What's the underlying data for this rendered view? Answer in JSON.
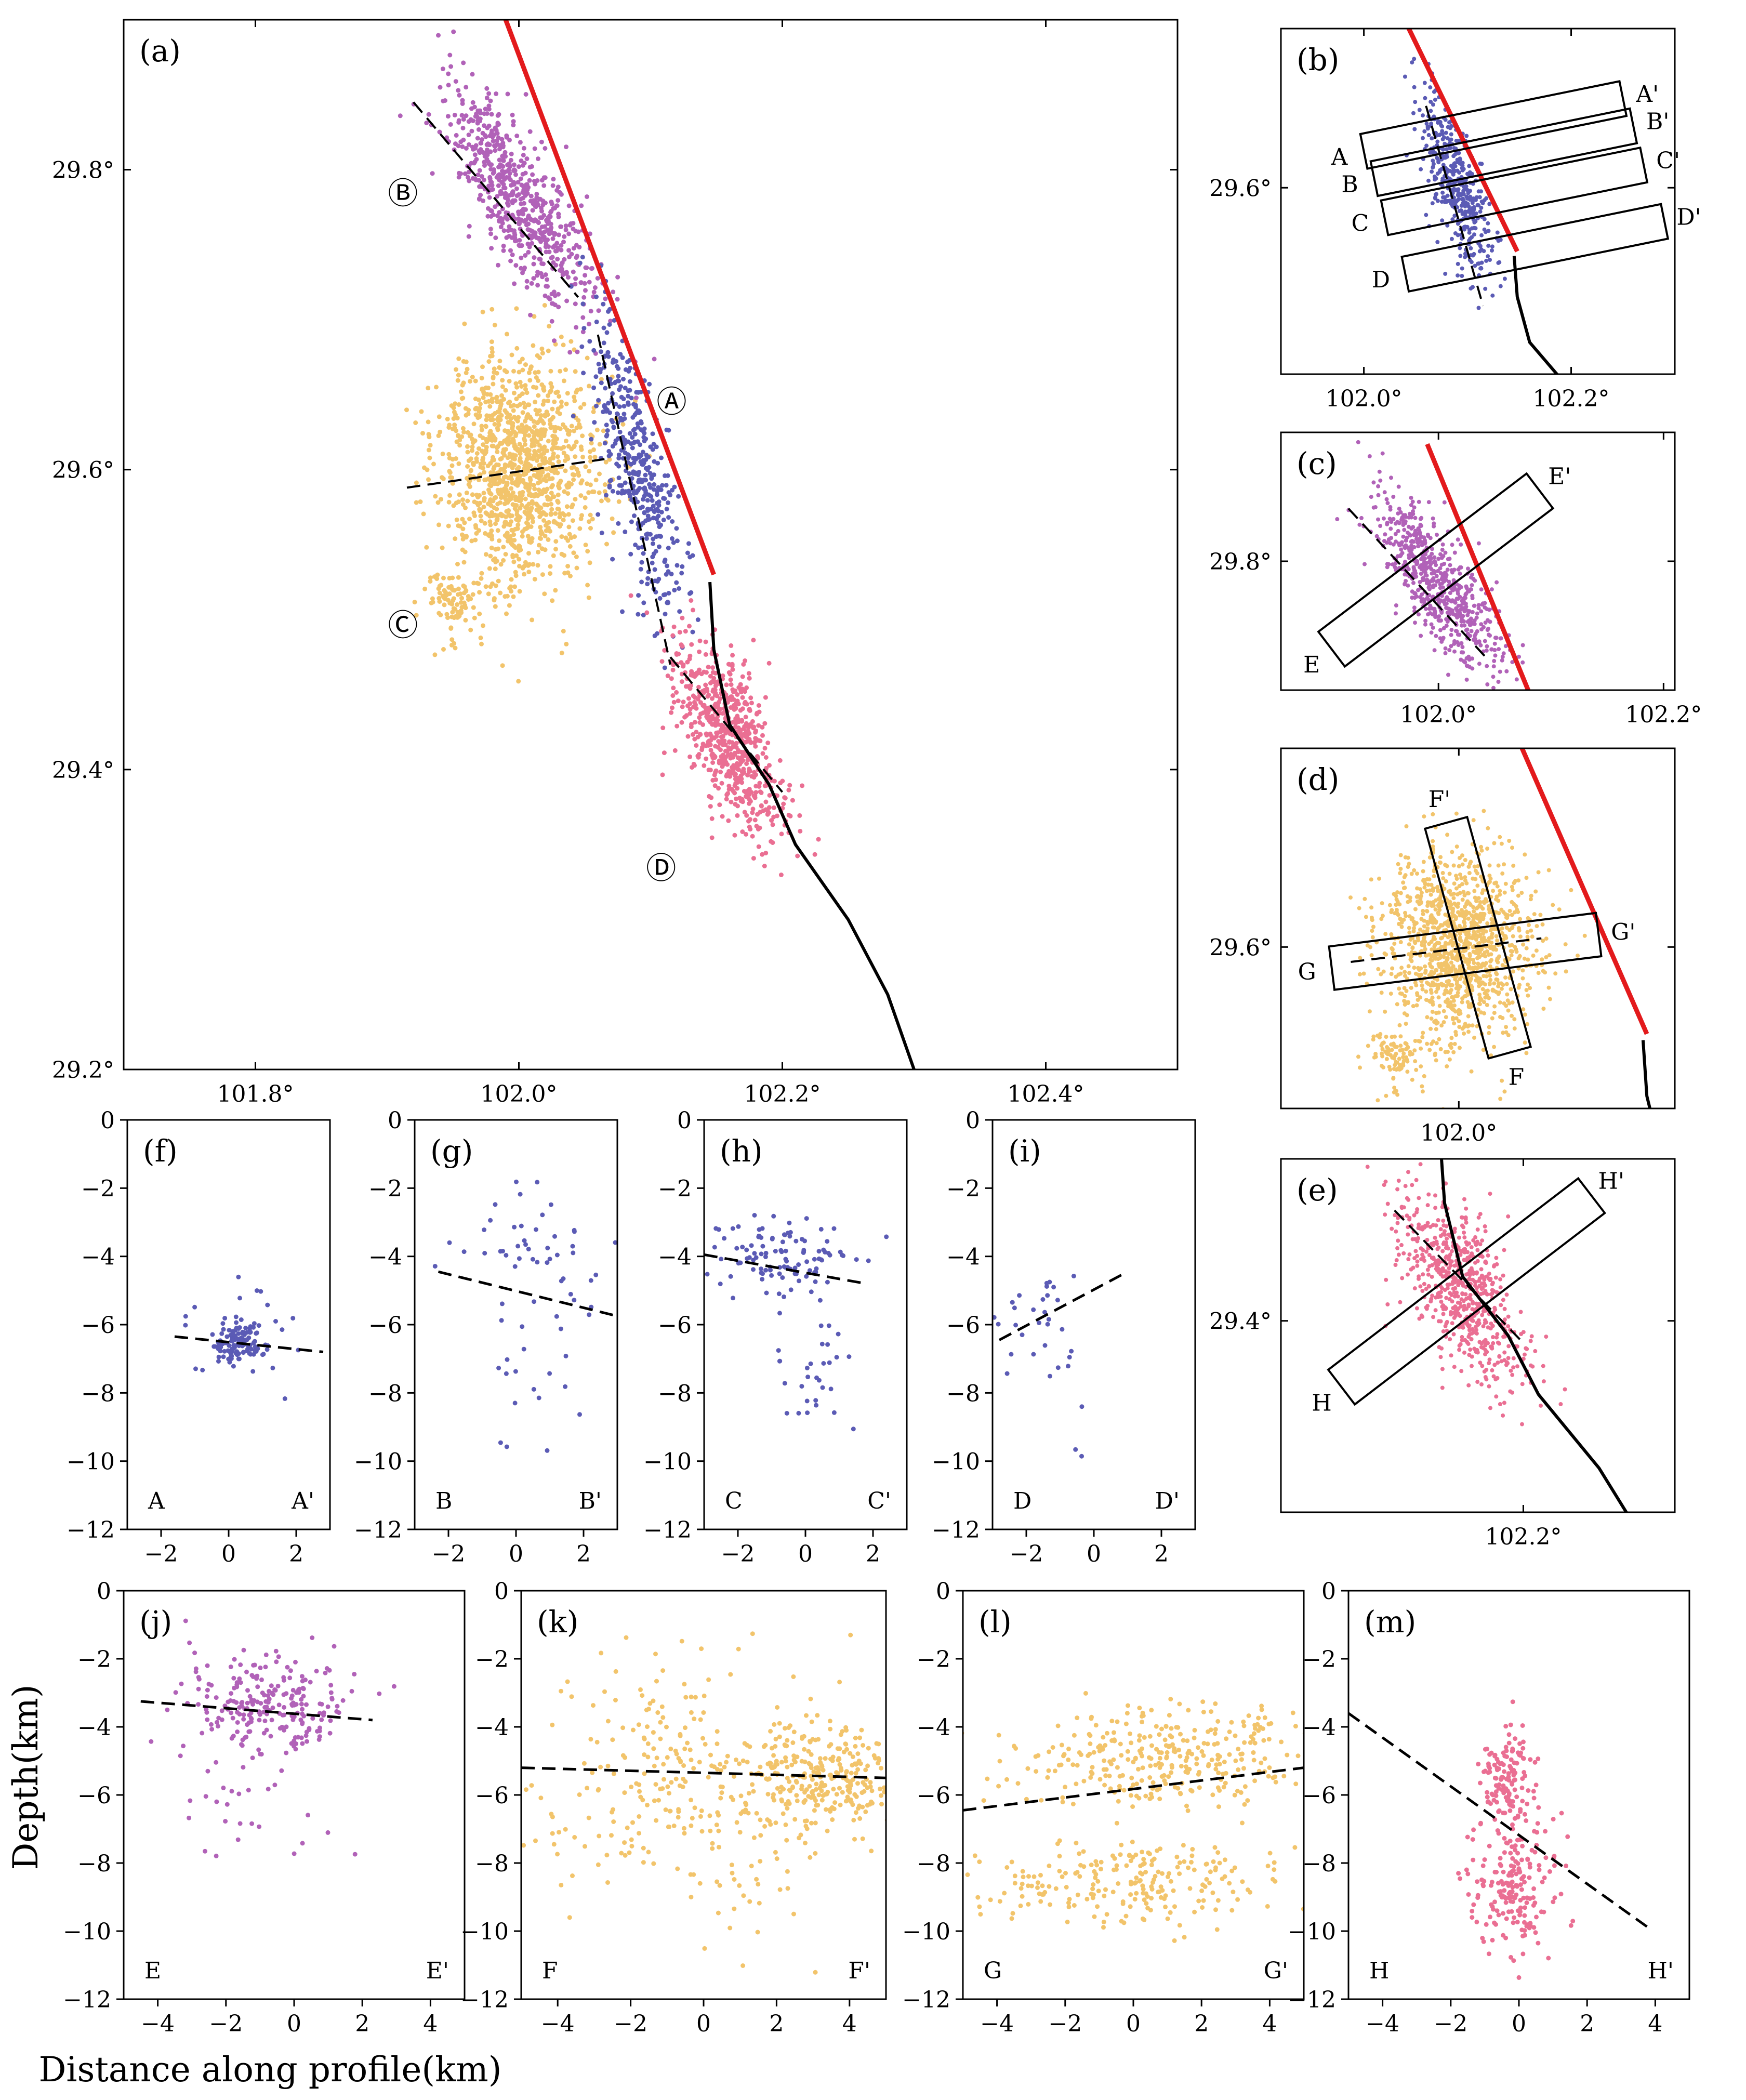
{
  "figure": {
    "ylabel": "Depth(km)",
    "xlabel": "Distance along profile(km)"
  },
  "colors": {
    "A": "#5b5bb5",
    "B": "#b162b8",
    "C": "#f2c46b",
    "D": "#ea6f93",
    "fault_red": "#e31a1c",
    "fault_black": "#000000"
  },
  "chart_data": [
    {
      "id": "a",
      "type": "map",
      "label": "(a)",
      "xlim": [
        101.7,
        102.5
      ],
      "ylim": [
        29.2,
        29.9
      ],
      "xticks": [
        101.8,
        102.0,
        102.2,
        102.4
      ],
      "xtick_labels": [
        "101.8°",
        "102.0°",
        "102.2°",
        "102.4°"
      ],
      "yticks": [
        29.2,
        29.4,
        29.6,
        29.8
      ],
      "ytick_labels": [
        "29.2°",
        "29.4°",
        "29.6°",
        "29.8°"
      ],
      "clusters": [
        {
          "name": "A",
          "symbol": "Ⓐ",
          "lon": 102.09,
          "lat": 29.6,
          "spread_lon": 0.012,
          "spread_lat": 0.05,
          "count": 420,
          "label_lon": 102.116,
          "label_lat": 29.646
        },
        {
          "name": "B",
          "symbol": "Ⓑ",
          "lon": 102.0,
          "lat": 29.78,
          "spread_lon": 0.018,
          "spread_lat": 0.038,
          "count": 650,
          "label_lon": 101.912,
          "label_lat": 29.785
        },
        {
          "name": "C",
          "symbol": "Ⓒ",
          "lon": 102.0,
          "lat": 29.6,
          "spread_lon": 0.028,
          "spread_lat": 0.04,
          "count": 1300,
          "label_lon": 101.912,
          "label_lat": 29.497
        },
        {
          "name": "D",
          "symbol": "Ⓓ",
          "lon": 102.16,
          "lat": 29.42,
          "spread_lon": 0.016,
          "spread_lat": 0.032,
          "count": 650,
          "label_lon": 102.108,
          "label_lat": 29.335
        }
      ],
      "red_fault": [
        [
          101.99,
          29.9
        ],
        [
          102.148,
          29.53
        ]
      ],
      "black_fault": [
        [
          102.145,
          29.525
        ],
        [
          102.148,
          29.48
        ],
        [
          102.16,
          29.43
        ],
        [
          102.19,
          29.39
        ],
        [
          102.21,
          29.35
        ],
        [
          102.25,
          29.3
        ],
        [
          102.28,
          29.25
        ],
        [
          102.3,
          29.2
        ]
      ],
      "dashed_lines": [
        {
          "cluster": "B",
          "points": [
            [
              101.92,
              29.845
            ],
            [
              102.045,
              29.715
            ]
          ]
        },
        {
          "cluster": "A",
          "points": [
            [
              102.06,
              29.69
            ],
            [
              102.115,
              29.47
            ]
          ]
        },
        {
          "cluster": "C",
          "points": [
            [
              101.915,
              29.588
            ],
            [
              102.065,
              29.607
            ]
          ]
        },
        {
          "cluster": "D",
          "points": [
            [
              102.115,
              29.475
            ],
            [
              102.2,
              29.385
            ]
          ]
        }
      ]
    },
    {
      "id": "b",
      "type": "map",
      "label": "(b)",
      "xlim": [
        101.92,
        102.3
      ],
      "ylim": [
        29.395,
        29.775
      ],
      "xticks": [
        102.0,
        102.2
      ],
      "xtick_labels": [
        "102.0°",
        "102.2°"
      ],
      "yticks": [
        29.6
      ],
      "ytick_labels": [
        "29.6°"
      ],
      "profiles": [
        {
          "start": "A",
          "end": "A'",
          "start_lon": 102.0,
          "start_lat": 29.64,
          "end_lon": 102.25,
          "end_lat": 29.698
        },
        {
          "start": "B",
          "end": "B'",
          "start_lon": 102.01,
          "start_lat": 29.61,
          "end_lon": 102.26,
          "end_lat": 29.668
        },
        {
          "start": "C",
          "end": "C'",
          "start_lon": 102.02,
          "start_lat": 29.567,
          "end_lon": 102.27,
          "end_lat": 29.625
        },
        {
          "start": "D",
          "end": "D'",
          "start_lon": 102.04,
          "start_lat": 29.505,
          "end_lon": 102.29,
          "end_lat": 29.563
        }
      ]
    },
    {
      "id": "c",
      "type": "map",
      "label": "(c)",
      "xlim": [
        101.86,
        102.21
      ],
      "ylim": [
        29.69,
        29.91
      ],
      "xticks": [
        102.0,
        102.2
      ],
      "xtick_labels": [
        "102.0°",
        "102.2°"
      ],
      "yticks": [
        29.8
      ],
      "ytick_labels": [
        "29.8°"
      ],
      "profiles": [
        {
          "start": "E",
          "end": "E'",
          "start_lon": 101.905,
          "start_lat": 29.725,
          "end_lon": 102.09,
          "end_lat": 29.86
        }
      ]
    },
    {
      "id": "d",
      "type": "map",
      "label": "(d)",
      "xlim": [
        101.86,
        102.17
      ],
      "ylim": [
        29.47,
        29.76
      ],
      "xticks": [
        102.0
      ],
      "xtick_labels": [
        "102.0°"
      ],
      "yticks": [
        29.6
      ],
      "ytick_labels": [
        "29.6°"
      ],
      "profiles": [
        {
          "start": "F",
          "end": "F'",
          "start_lon": 102.04,
          "start_lat": 29.515,
          "end_lon": 101.99,
          "end_lat": 29.7
        },
        {
          "start": "G",
          "end": "G'",
          "start_lon": 101.9,
          "start_lat": 29.583,
          "end_lon": 102.11,
          "end_lat": 29.61
        }
      ]
    },
    {
      "id": "e",
      "type": "map",
      "label": "(e)",
      "xlim": [
        102.04,
        102.3
      ],
      "ylim": [
        29.27,
        29.51
      ],
      "xticks": [
        102.2
      ],
      "xtick_labels": [
        "102.2°"
      ],
      "yticks": [
        29.4
      ],
      "ytick_labels": [
        "29.4°"
      ],
      "profiles": [
        {
          "start": "H",
          "end": "H'",
          "start_lon": 102.08,
          "start_lat": 29.355,
          "end_lon": 102.245,
          "end_lat": 29.485
        }
      ]
    },
    {
      "id": "f",
      "type": "scatter",
      "label": "(f)",
      "cluster": "A",
      "start": "A",
      "end": "A'",
      "xlim": [
        -3,
        3
      ],
      "xticks": [
        -2,
        0,
        2
      ],
      "ylim": [
        -12,
        0
      ],
      "yticks": [
        0,
        -2,
        -4,
        -6,
        -8,
        -10,
        -12
      ],
      "ytick_labels": [
        "0",
        "−2",
        "−4",
        "−6",
        "−8",
        "−10",
        "−12"
      ],
      "fit_line": [
        [
          -1.6,
          -6.35
        ],
        [
          2.8,
          -6.8
        ]
      ],
      "cloud": {
        "cx": 0.3,
        "cy": -6.6,
        "sx": 0.35,
        "sy": 0.3,
        "n": 110
      },
      "scatter": {
        "cx": 0.4,
        "cy": -6.3,
        "sx": 1.0,
        "sy": 0.9,
        "n": 30
      }
    },
    {
      "id": "g",
      "type": "scatter",
      "label": "(g)",
      "cluster": "A",
      "start": "B",
      "end": "B'",
      "xlim": [
        -3,
        3
      ],
      "xticks": [
        -2,
        0,
        2
      ],
      "ylim": [
        -12,
        0
      ],
      "yticks": [
        0,
        -2,
        -4,
        -6,
        -8,
        -10,
        -12
      ],
      "ytick_labels": [
        "0",
        "−2",
        "−4",
        "−6",
        "−8",
        "−10",
        "−12"
      ],
      "fit_line": [
        [
          -2.3,
          -4.45
        ],
        [
          3,
          -5.75
        ]
      ],
      "cloud": {
        "cx": 0.3,
        "cy": -3.6,
        "sx": 1.1,
        "sy": 0.8,
        "n": 30
      },
      "scatter": {
        "cx": 0.5,
        "cy": -6.5,
        "sx": 0.9,
        "sy": 1.8,
        "n": 35
      }
    },
    {
      "id": "h",
      "type": "scatter",
      "label": "(h)",
      "cluster": "A",
      "start": "C",
      "end": "C'",
      "xlim": [
        -3,
        3
      ],
      "xticks": [
        -2,
        0,
        2
      ],
      "ylim": [
        -12,
        0
      ],
      "yticks": [
        0,
        -2,
        -4,
        -6,
        -8,
        -10,
        -12
      ],
      "ytick_labels": [
        "0",
        "−2",
        "−4",
        "−6",
        "−8",
        "−10",
        "−12"
      ],
      "fit_line": [
        [
          -3,
          -3.95
        ],
        [
          1.8,
          -4.8
        ]
      ],
      "cloud": {
        "cx": -0.8,
        "cy": -4.0,
        "sx": 1.0,
        "sy": 0.6,
        "n": 110
      },
      "scatter": {
        "cx": 0.2,
        "cy": -7.3,
        "sx": 0.6,
        "sy": 0.8,
        "n": 30
      }
    },
    {
      "id": "i",
      "type": "scatter",
      "label": "(i)",
      "cluster": "A",
      "start": "D",
      "end": "D'",
      "xlim": [
        -3,
        3
      ],
      "xticks": [
        -2,
        0,
        2
      ],
      "ylim": [
        -12,
        0
      ],
      "yticks": [
        0,
        -2,
        -4,
        -6,
        -8,
        -10,
        -12
      ],
      "ytick_labels": [
        "0",
        "−2",
        "−4",
        "−6",
        "−8",
        "−10",
        "−12"
      ],
      "fit_line": [
        [
          -2.8,
          -6.45
        ],
        [
          0.9,
          -4.5
        ]
      ],
      "cloud": {
        "cx": -1.4,
        "cy": -5.6,
        "sx": 0.7,
        "sy": 0.9,
        "n": 25
      },
      "scatter": {
        "cx": -1.2,
        "cy": -8.5,
        "sx": 0.6,
        "sy": 1.1,
        "n": 8
      }
    },
    {
      "id": "j",
      "type": "scatter",
      "label": "(j)",
      "cluster": "B",
      "start": "E",
      "end": "E'",
      "xlim": [
        -5,
        5
      ],
      "xticks": [
        -4,
        -2,
        0,
        2,
        4
      ],
      "ylim": [
        -12,
        0
      ],
      "yticks": [
        0,
        -2,
        -4,
        -6,
        -8,
        -10,
        -12
      ],
      "ytick_labels": [
        "0",
        "−2",
        "−4",
        "−6",
        "−8",
        "−10",
        "−12"
      ],
      "fit_line": [
        [
          -4.5,
          -3.25
        ],
        [
          2.3,
          -3.8
        ]
      ],
      "cloud": {
        "cx": -0.8,
        "cy": -3.4,
        "sx": 1.2,
        "sy": 0.7,
        "n": 220
      },
      "scatter": {
        "cx": -0.8,
        "cy": -5.5,
        "sx": 1.4,
        "sy": 1.6,
        "n": 45
      }
    },
    {
      "id": "k",
      "type": "scatter",
      "label": "(k)",
      "cluster": "C",
      "start": "F",
      "end": "F'",
      "xlim": [
        -5,
        5
      ],
      "xticks": [
        -4,
        -2,
        0,
        2,
        4
      ],
      "ylim": [
        -12,
        0
      ],
      "yticks": [
        0,
        -2,
        -4,
        -6,
        -8,
        -10,
        -12
      ],
      "ytick_labels": [
        "0",
        "−2",
        "−4",
        "−6",
        "−8",
        "−10",
        "−12"
      ],
      "fit_line": [
        [
          -5,
          -5.2
        ],
        [
          5,
          -5.5
        ]
      ],
      "cloud": {
        "cx": 3.2,
        "cy": -5.6,
        "sx": 1.1,
        "sy": 0.8,
        "n": 250
      },
      "scatter": {
        "cx": -0.5,
        "cy": -5.8,
        "sx": 2.7,
        "sy": 1.8,
        "n": 340
      }
    },
    {
      "id": "l",
      "type": "scatter",
      "label": "(l)",
      "cluster": "C",
      "start": "G",
      "end": "G'",
      "xlim": [
        -5,
        5
      ],
      "xticks": [
        -4,
        -2,
        0,
        2,
        4
      ],
      "ylim": [
        -12,
        0
      ],
      "yticks": [
        0,
        -2,
        -4,
        -6,
        -8,
        -10,
        -12
      ],
      "ytick_labels": [
        "0",
        "−2",
        "−4",
        "−6",
        "−8",
        "−10",
        "−12"
      ],
      "fit_line": [
        [
          -5,
          -6.45
        ],
        [
          5,
          -5.2
        ]
      ],
      "cloud": {
        "cx": 1.0,
        "cy": -4.8,
        "sx": 2.4,
        "sy": 0.8,
        "n": 330
      },
      "scatter": {
        "cx": 0.3,
        "cy": -8.6,
        "sx": 2.4,
        "sy": 0.6,
        "n": 230
      }
    },
    {
      "id": "m",
      "type": "scatter",
      "label": "(m)",
      "cluster": "D",
      "start": "H",
      "end": "H'",
      "xlim": [
        -5,
        5
      ],
      "xticks": [
        -4,
        -2,
        0,
        2,
        4
      ],
      "ylim": [
        -12,
        0
      ],
      "yticks": [
        0,
        -2,
        -4,
        -6,
        -8,
        -10,
        -12
      ],
      "ytick_labels": [
        "0",
        "−2",
        "−4",
        "−6",
        "−8",
        "−10",
        "−12"
      ],
      "fit_line": [
        [
          -5,
          -3.6
        ],
        [
          3.8,
          -9.9
        ]
      ],
      "cloud": {
        "cx": -0.4,
        "cy": -5.4,
        "sx": 0.35,
        "sy": 0.7,
        "n": 130
      },
      "scatter": {
        "cx": -0.1,
        "cy": -8.6,
        "sx": 0.6,
        "sy": 1.0,
        "n": 200
      }
    }
  ]
}
